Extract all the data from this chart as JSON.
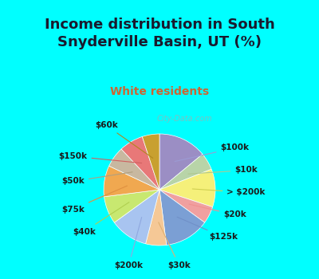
{
  "title": "Income distribution in South\nSnyderville Basin, UT (%)",
  "subtitle": "White residents",
  "title_color": "#1a1a2e",
  "subtitle_color": "#cc6633",
  "bg_top": "#00ffff",
  "bg_chart": "#e8f5e8",
  "labels": [
    "$100k",
    "$10k",
    "> $200k",
    "$20k",
    "$125k",
    "$30k",
    "$200k",
    "$40k",
    "$75k",
    "$50k",
    "$150k",
    "$60k"
  ],
  "values": [
    14,
    5,
    11,
    5,
    13,
    6,
    11,
    8,
    9,
    6,
    7,
    5
  ],
  "colors": [
    "#9b8ec4",
    "#b8d4a8",
    "#f5f07a",
    "#f0a0a0",
    "#7b9fd4",
    "#f5c896",
    "#a8c4f0",
    "#c8e870",
    "#f0a850",
    "#c8b8a0",
    "#e87878",
    "#c8a030"
  ],
  "watermark": "City-Data.com"
}
